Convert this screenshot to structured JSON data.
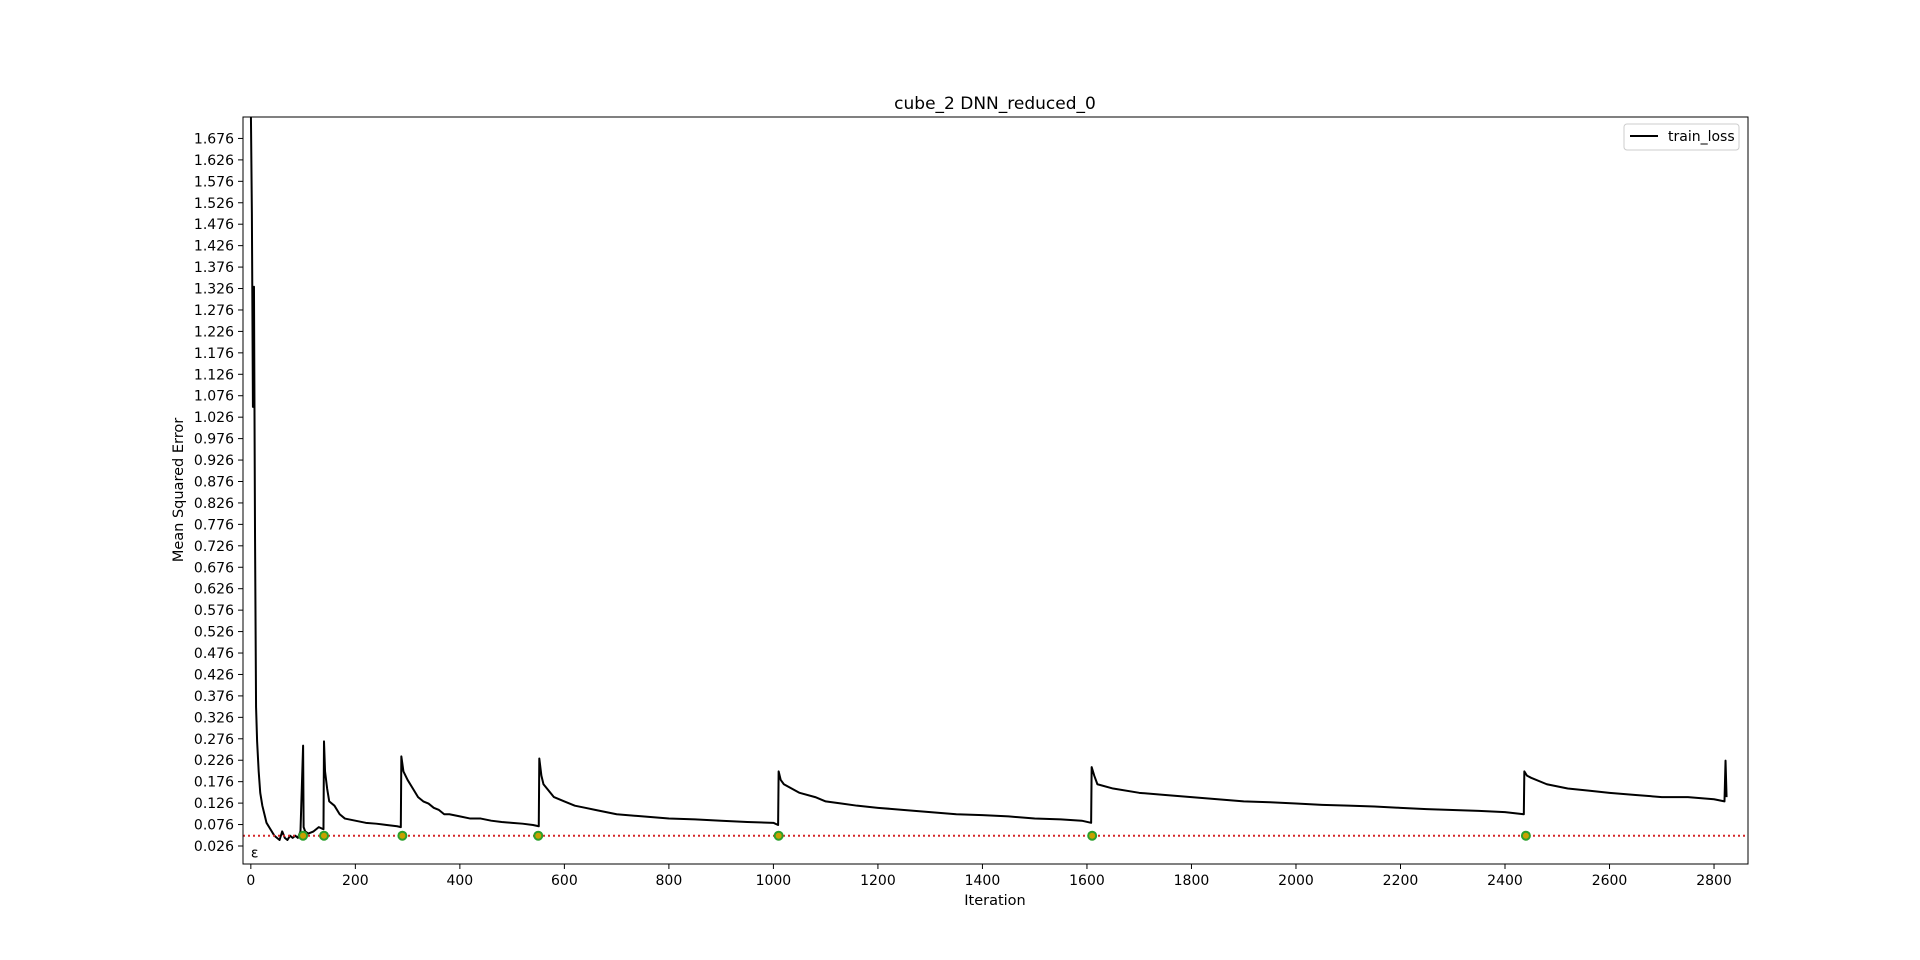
{
  "chart_data": {
    "type": "line",
    "title": "cube_2 DNN_reduced_0",
    "xlabel": "Iteration",
    "ylabel": "Mean Squared Error",
    "xlim": [
      -15,
      2865
    ],
    "ylim": [
      -0.016,
      1.726
    ],
    "xticks": [
      0,
      200,
      400,
      600,
      800,
      1000,
      1200,
      1400,
      1600,
      1800,
      2000,
      2200,
      2400,
      2600,
      2800
    ],
    "xtick_labels": [
      "0",
      "200",
      "400",
      "600",
      "800",
      "1000",
      "1200",
      "1400",
      "1600",
      "1800",
      "2000",
      "2200",
      "2400",
      "2600",
      "2800"
    ],
    "yticks": [
      0.026,
      0.076,
      0.126,
      0.176,
      0.226,
      0.276,
      0.326,
      0.376,
      0.426,
      0.476,
      0.526,
      0.576,
      0.626,
      0.676,
      0.726,
      0.776,
      0.826,
      0.876,
      0.926,
      0.976,
      1.026,
      1.076,
      1.126,
      1.176,
      1.226,
      1.276,
      1.326,
      1.376,
      1.426,
      1.476,
      1.526,
      1.576,
      1.626,
      1.676
    ],
    "ytick_labels": [
      "0.026",
      "0.076",
      "0.126",
      "0.176",
      "0.226",
      "0.276",
      "0.326",
      "0.376",
      "0.426",
      "0.476",
      "0.526",
      "0.576",
      "0.626",
      "0.676",
      "0.726",
      "0.776",
      "0.826",
      "0.876",
      "0.926",
      "0.976",
      "1.026",
      "1.076",
      "1.126",
      "1.176",
      "1.226",
      "1.276",
      "1.326",
      "1.376",
      "1.426",
      "1.476",
      "1.526",
      "1.576",
      "1.626",
      "1.676"
    ],
    "legend": {
      "placement": "upper-right",
      "entries": [
        "train_loss"
      ]
    },
    "grid": false,
    "epsilon": {
      "value": 0.05,
      "label": "ε",
      "color": "#d62728",
      "style": "dotted"
    },
    "series": [
      {
        "name": "train_loss",
        "color": "#000000",
        "x": [
          0,
          2,
          4,
          6,
          8,
          10,
          12,
          15,
          18,
          22,
          26,
          30,
          35,
          40,
          45,
          50,
          55,
          60,
          65,
          70,
          75,
          80,
          85,
          90,
          95,
          100,
          101,
          104,
          110,
          120,
          130,
          139,
          140,
          142,
          146,
          150,
          160,
          170,
          180,
          200,
          220,
          240,
          260,
          280,
          287,
          288,
          292,
          300,
          310,
          320,
          330,
          340,
          350,
          360,
          370,
          380,
          400,
          420,
          440,
          460,
          480,
          500,
          520,
          540,
          551,
          552,
          556,
          560,
          580,
          600,
          620,
          640,
          660,
          680,
          700,
          750,
          800,
          850,
          900,
          950,
          1000,
          1009,
          1010,
          1014,
          1020,
          1050,
          1080,
          1100,
          1130,
          1160,
          1200,
          1250,
          1300,
          1350,
          1400,
          1450,
          1500,
          1550,
          1590,
          1608,
          1609,
          1614,
          1620,
          1650,
          1700,
          1750,
          1800,
          1850,
          1900,
          1950,
          2000,
          2050,
          2100,
          2150,
          2200,
          2250,
          2300,
          2350,
          2400,
          2436,
          2437,
          2442,
          2450,
          2480,
          2520,
          2560,
          2600,
          2650,
          2700,
          2750,
          2800,
          2820,
          2822,
          2824
        ],
        "y": [
          1.75,
          1.5,
          1.05,
          1.33,
          0.75,
          0.35,
          0.27,
          0.2,
          0.15,
          0.12,
          0.1,
          0.08,
          0.07,
          0.06,
          0.05,
          0.045,
          0.04,
          0.06,
          0.045,
          0.04,
          0.05,
          0.045,
          0.05,
          0.045,
          0.06,
          0.26,
          0.07,
          0.06,
          0.055,
          0.06,
          0.07,
          0.065,
          0.27,
          0.2,
          0.16,
          0.13,
          0.12,
          0.1,
          0.09,
          0.085,
          0.08,
          0.078,
          0.075,
          0.072,
          0.07,
          0.235,
          0.2,
          0.18,
          0.16,
          0.14,
          0.13,
          0.125,
          0.115,
          0.11,
          0.1,
          0.1,
          0.095,
          0.09,
          0.09,
          0.085,
          0.082,
          0.08,
          0.078,
          0.075,
          0.072,
          0.23,
          0.19,
          0.17,
          0.14,
          0.13,
          0.12,
          0.115,
          0.11,
          0.105,
          0.1,
          0.095,
          0.09,
          0.088,
          0.085,
          0.082,
          0.08,
          0.075,
          0.2,
          0.18,
          0.17,
          0.15,
          0.14,
          0.13,
          0.125,
          0.12,
          0.115,
          0.11,
          0.105,
          0.1,
          0.098,
          0.095,
          0.09,
          0.088,
          0.085,
          0.08,
          0.21,
          0.19,
          0.17,
          0.16,
          0.15,
          0.145,
          0.14,
          0.135,
          0.13,
          0.128,
          0.125,
          0.122,
          0.12,
          0.118,
          0.115,
          0.112,
          0.11,
          0.108,
          0.105,
          0.1,
          0.2,
          0.19,
          0.185,
          0.17,
          0.16,
          0.155,
          0.15,
          0.145,
          0.14,
          0.14,
          0.135,
          0.13,
          0.225,
          0.14
        ]
      }
    ],
    "markers": {
      "type": "circle",
      "edge_color": "#2ca02c",
      "face_color": "#c8a000",
      "x": [
        100,
        140,
        290,
        550,
        1010,
        1610,
        2440
      ],
      "y": [
        0.05,
        0.05,
        0.05,
        0.05,
        0.05,
        0.05,
        0.05
      ]
    }
  }
}
